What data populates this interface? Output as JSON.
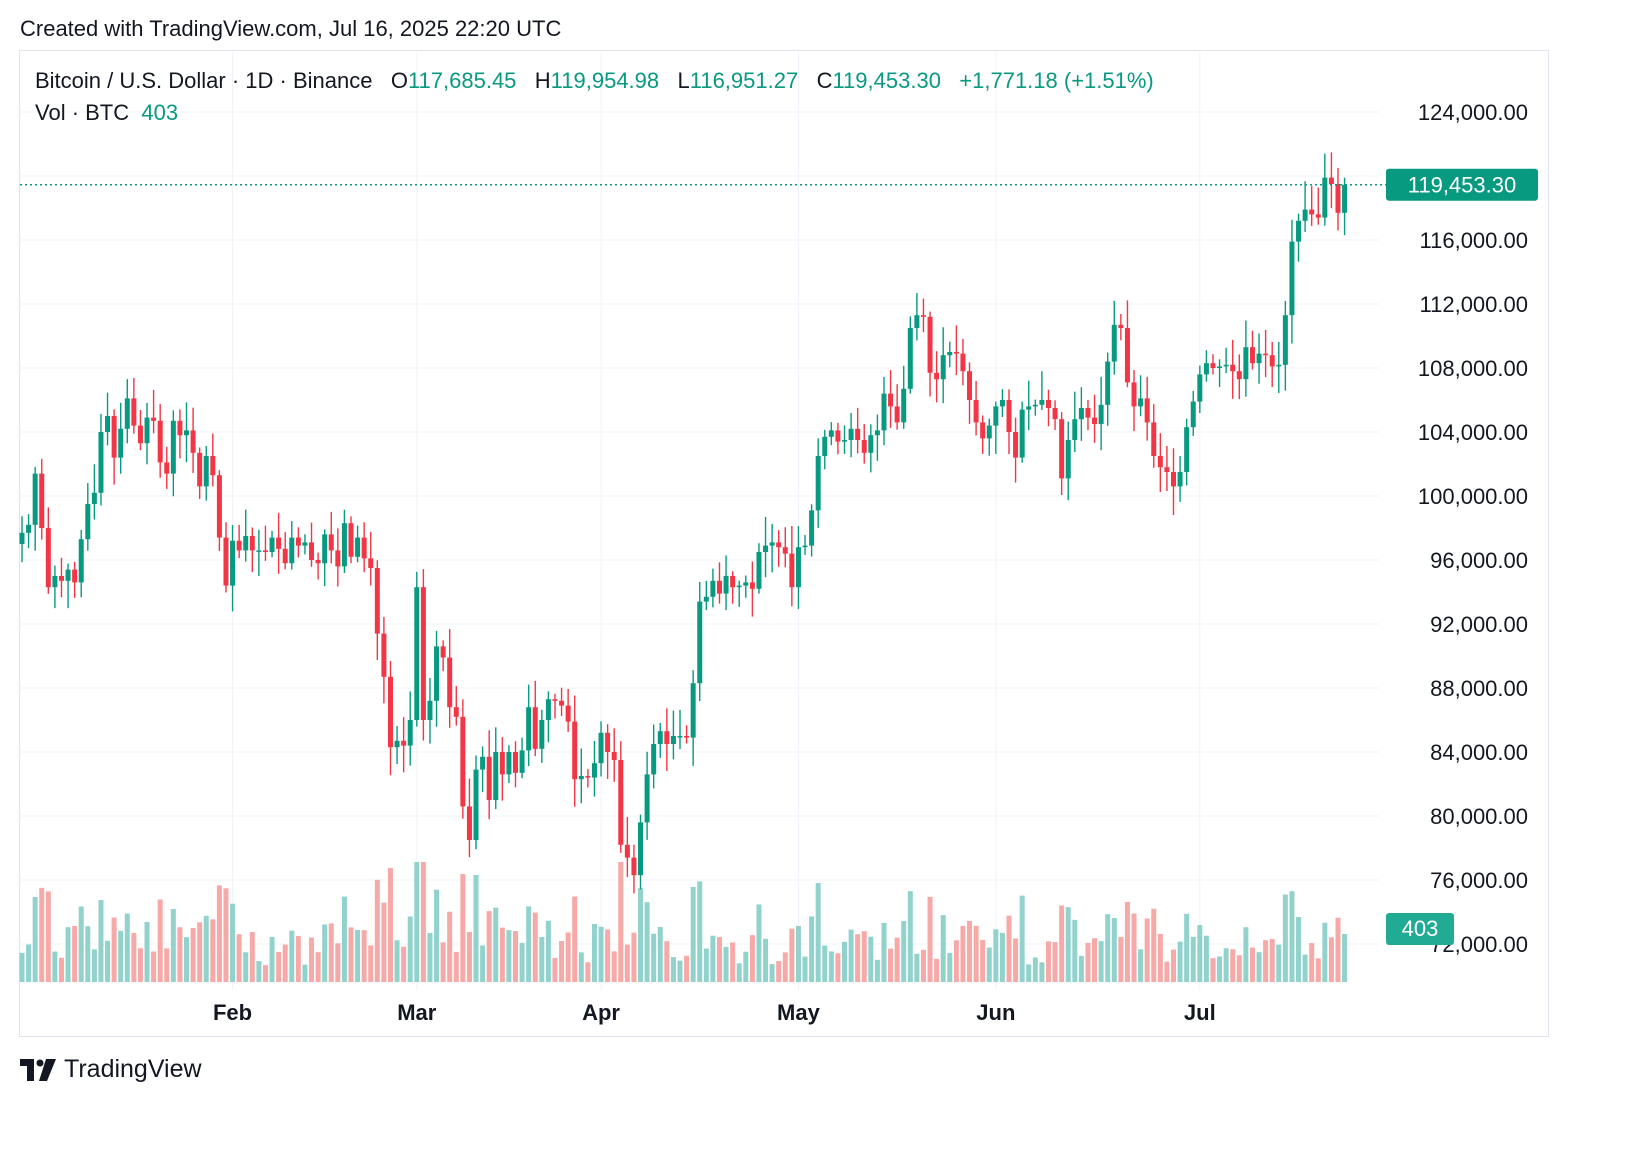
{
  "header": {
    "created_text": "Created with TradingView.com, Jul 16, 2025 22:20 UTC"
  },
  "legend": {
    "symbol": "Bitcoin / U.S. Dollar · 1D · Binance",
    "o_label": "O",
    "o_value": "117,685.45",
    "h_label": "H",
    "h_value": "119,954.98",
    "l_label": "L",
    "l_value": "116,951.27",
    "c_label": "C",
    "c_value": "119,453.30",
    "change": "+1,771.18 (+1.51%)",
    "vol_label": "Vol · BTC",
    "vol_value": "403"
  },
  "price_badge": "119,453.30",
  "volume_badge": "403",
  "footer": {
    "brand": "TradingView"
  },
  "colors": {
    "up": "#089981",
    "down": "#f23645",
    "up_vol": "#92d2cc",
    "down_vol": "#f7a9a7",
    "grid": "#f0f3fa",
    "text": "#131722"
  },
  "chart_data": {
    "type": "candlestick",
    "title": "Bitcoin / U.S. Dollar · 1D · Binance",
    "x_ticks": [
      "Feb",
      "Mar",
      "Apr",
      "May",
      "Jun",
      "Jul"
    ],
    "y_ticks": [
      "124,000.00",
      "116,000.00",
      "112,000.00",
      "108,000.00",
      "104,000.00",
      "100,000.00",
      "96,000.00",
      "92,000.00",
      "88,000.00",
      "84,000.00",
      "80,000.00",
      "76,000.00",
      "72,000.00"
    ],
    "ylim": [
      70000,
      126000
    ],
    "last_price": 119453.3,
    "grid": true,
    "approx_daily_close": [
      {
        "month": "Jan",
        "closes": [
          97700,
          98200,
          101400,
          98000,
          94300,
          95000,
          94700,
          95400,
          94600,
          97300,
          99500,
          100200,
          104000,
          105000,
          102400,
          104200,
          106100,
          104400,
          103300,
          104900,
          104700,
          102100,
          101400,
          104700,
          103800,
          104100,
          102700,
          100600,
          102500,
          101300,
          97400,
          94400
        ]
      },
      {
        "month": "Feb",
        "closes": [
          97200,
          96600,
          97500,
          96600,
          96600,
          96500,
          97400,
          96700,
          95800,
          97400,
          96900,
          97100,
          96000,
          95800,
          97600,
          96600,
          95600,
          98300,
          96200,
          97400,
          96100,
          95500,
          91400,
          88700,
          84300,
          84700,
          84400,
          86000
        ]
      },
      {
        "month": "Mar",
        "closes": [
          94300,
          86000,
          87200,
          90600,
          89900,
          86800,
          86200,
          80600,
          78500,
          82900,
          83700,
          81000,
          84000,
          82600,
          84000,
          82700,
          84100,
          86800,
          84200,
          86000,
          87300,
          87200,
          86900,
          85900,
          82300,
          82500,
          82400,
          83300
        ]
      },
      {
        "month": "Apr",
        "closes": [
          85200,
          84000,
          83500,
          78200,
          77400,
          76300,
          79600,
          82600,
          84500,
          85300,
          84500,
          85000,
          85000,
          84900,
          88300,
          93400,
          93700,
          94700,
          93900,
          95000,
          94300,
          94400,
          94600,
          94200,
          96500,
          96900,
          97100,
          96800,
          96400,
          94300
        ]
      },
      {
        "month": "May",
        "closes": [
          96800,
          96900,
          99100,
          102500,
          103700,
          104100,
          103400,
          103500,
          104200,
          103500,
          102700,
          103800,
          104100,
          106400,
          105600,
          104600,
          106700,
          110500,
          111300,
          111200,
          107700,
          107300,
          108800,
          109000,
          108900,
          107800,
          106000,
          104600,
          103600,
          104400
        ]
      },
      {
        "month": "Jun",
        "closes": [
          105600,
          106000,
          104000,
          102400,
          105400,
          105600,
          105700,
          106000,
          105500,
          104800,
          101100,
          103500,
          104800,
          105500,
          104900,
          104500,
          105700,
          108400,
          110700,
          110500,
          107100,
          105600,
          106100,
          104600,
          102500,
          101800,
          101500,
          100600,
          101500,
          104300,
          105900
        ]
      },
      {
        "month": "Jul",
        "closes": [
          107600,
          108300,
          108000,
          108100,
          108200,
          107800,
          107300,
          109300,
          108300,
          108900,
          108800,
          108100,
          108200,
          111300,
          115900,
          117200,
          117900,
          117600,
          117400,
          119900,
          119500,
          117700,
          119453
        ]
      }
    ]
  }
}
